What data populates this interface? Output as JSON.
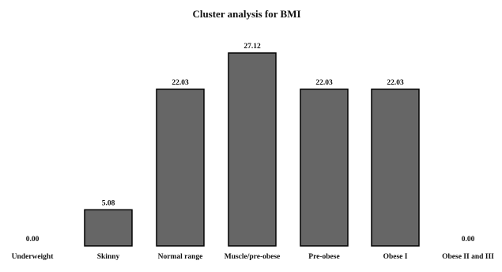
{
  "chart_data": {
    "type": "bar",
    "title": "Cluster analysis for BMI",
    "xlabel": "",
    "ylabel": "",
    "categories": [
      "Underweight",
      "Skinny",
      "Normal range",
      "Muscle/pre-obese",
      "Pre-obese",
      "Obese I",
      "Obese II and III"
    ],
    "values": [
      0.0,
      5.08,
      22.03,
      27.12,
      22.03,
      22.03,
      0.0
    ],
    "data_labels": [
      "0.00",
      "5.08",
      "22.03",
      "27.12",
      "22.03",
      "22.03",
      "0.00"
    ],
    "ylim": [
      0,
      30
    ],
    "grid": false,
    "legend": "none",
    "bar_color": "#666666",
    "bar_edge_color": "#000000"
  }
}
